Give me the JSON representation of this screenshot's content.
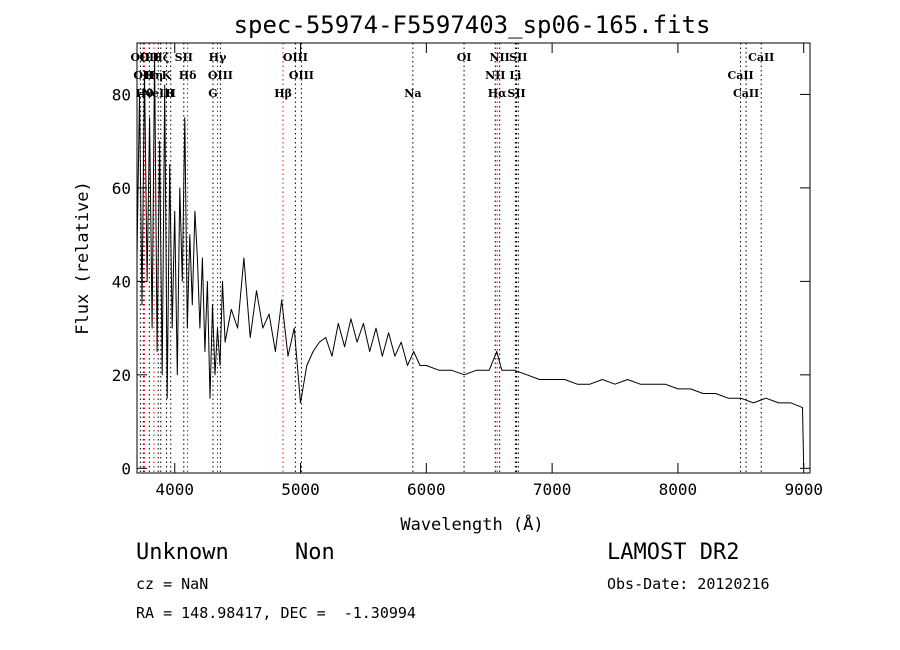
{
  "chart_data": {
    "type": "line",
    "title": "spec-55974-F5597403_sp06-165.fits",
    "xlabel": "Wavelength (Å)",
    "ylabel": "Flux (relative)",
    "xlim": [
      3700,
      9050
    ],
    "ylim": [
      -1,
      91
    ],
    "x_ticks": [
      4000,
      5000,
      6000,
      7000,
      8000,
      9000
    ],
    "y_ticks": [
      0,
      20,
      40,
      60,
      80
    ],
    "grid": false,
    "series": [
      {
        "x": [
          3700,
          3720,
          3740,
          3760,
          3780,
          3800,
          3820,
          3840,
          3860,
          3880,
          3900,
          3920,
          3940,
          3960,
          3980,
          4000,
          4020,
          4040,
          4060,
          4080,
          4100,
          4120,
          4140,
          4160,
          4180,
          4200,
          4220,
          4240,
          4260,
          4280,
          4300,
          4320,
          4340,
          4360,
          4380,
          4400,
          4450,
          4500,
          4550,
          4600,
          4650,
          4700,
          4750,
          4800,
          4850,
          4900,
          4950,
          5000,
          5050,
          5100,
          5150,
          5200,
          5250,
          5300,
          5350,
          5400,
          5450,
          5500,
          5550,
          5600,
          5650,
          5700,
          5750,
          5800,
          5850,
          5900,
          5950,
          6000,
          6100,
          6200,
          6300,
          6400,
          6500,
          6560,
          6600,
          6700,
          6800,
          6900,
          7000,
          7100,
          7200,
          7300,
          7400,
          7500,
          7600,
          7700,
          7800,
          7900,
          8000,
          8100,
          8200,
          8300,
          8400,
          8500,
          8600,
          8700,
          8800,
          8900,
          8990,
          9000
        ],
        "values": [
          45,
          80,
          35,
          85,
          40,
          75,
          30,
          88,
          25,
          70,
          20,
          82,
          15,
          65,
          30,
          55,
          20,
          60,
          40,
          75,
          30,
          50,
          35,
          55,
          45,
          30,
          45,
          25,
          40,
          15,
          35,
          20,
          30,
          22,
          40,
          27,
          34,
          30,
          45,
          28,
          38,
          30,
          33,
          25,
          36,
          24,
          30,
          14,
          22,
          25,
          27,
          28,
          24,
          31,
          26,
          32,
          27,
          31,
          25,
          30,
          24,
          29,
          24,
          27,
          22,
          25,
          22,
          22,
          21,
          21,
          20,
          21,
          21,
          25,
          21,
          21,
          20,
          19,
          19,
          19,
          18,
          18,
          19,
          18,
          19,
          18,
          18,
          18,
          17,
          17,
          16,
          16,
          15,
          15,
          14,
          15,
          14,
          14,
          13,
          0
        ]
      }
    ],
    "lines": [
      {
        "x": 3727,
        "color": "#000000",
        "label": "OII"
      },
      {
        "x": 3750,
        "color": "#000000",
        "label": "OII"
      },
      {
        "x": 3760,
        "color": "#ff0000",
        "label": "Hθ"
      },
      {
        "x": 3798,
        "color": "#000000",
        "label": "OII"
      },
      {
        "x": 3835,
        "color": "#ff0000",
        "label": "Hη"
      },
      {
        "x": 3869,
        "color": "#000000",
        "label": "NeIII"
      },
      {
        "x": 3889,
        "color": "#000000",
        "label": "Hζ"
      },
      {
        "x": 3934,
        "color": "#000000",
        "label": "K"
      },
      {
        "x": 3968,
        "color": "#000000",
        "label": "H"
      },
      {
        "x": 4072,
        "color": "#000000",
        "label": "SII"
      },
      {
        "x": 4102,
        "color": "#ff0000",
        "label": "Hδ"
      },
      {
        "x": 4304,
        "color": "#000000",
        "label": "G"
      },
      {
        "x": 4340,
        "color": "#ff0000",
        "label": "Hγ"
      },
      {
        "x": 4363,
        "color": "#000000",
        "label": "OIII"
      },
      {
        "x": 4861,
        "color": "#ff0000",
        "label": "Hβ"
      },
      {
        "x": 4959,
        "color": "#000000",
        "label": "OIII"
      },
      {
        "x": 5007,
        "color": "#000000",
        "label": "OIII"
      },
      {
        "x": 5893,
        "color": "#000000",
        "label": "Na"
      },
      {
        "x": 6300,
        "color": "#000000",
        "label": "OI"
      },
      {
        "x": 6548,
        "color": "#000000",
        "label": "NII"
      },
      {
        "x": 6563,
        "color": "#ff0000",
        "label": "Hα"
      },
      {
        "x": 6583,
        "color": "#000000",
        "label": "NII"
      },
      {
        "x": 6708,
        "color": "#000000",
        "label": "Li"
      },
      {
        "x": 6717,
        "color": "#000000",
        "label": "SII"
      },
      {
        "x": 6731,
        "color": "#000000",
        "label": "SII"
      },
      {
        "x": 8498,
        "color": "#000000",
        "label": "CaII"
      },
      {
        "x": 8542,
        "color": "#000000",
        "label": "CaII"
      },
      {
        "x": 8662,
        "color": "#000000",
        "label": "CaII"
      }
    ]
  },
  "captions": {
    "object_class": "Unknown",
    "subclass": "Non",
    "redshift": "cz = NaN",
    "coordinates": "RA = 148.98417, DEC =  -1.30994",
    "survey": "LAMOST DR2",
    "obs_date": "Obs-Date: 20120216"
  },
  "colors": {
    "spectrum": "#000000",
    "emission_marker": "#ff0000",
    "absorption_marker": "#000000",
    "background": "#ffffff"
  }
}
